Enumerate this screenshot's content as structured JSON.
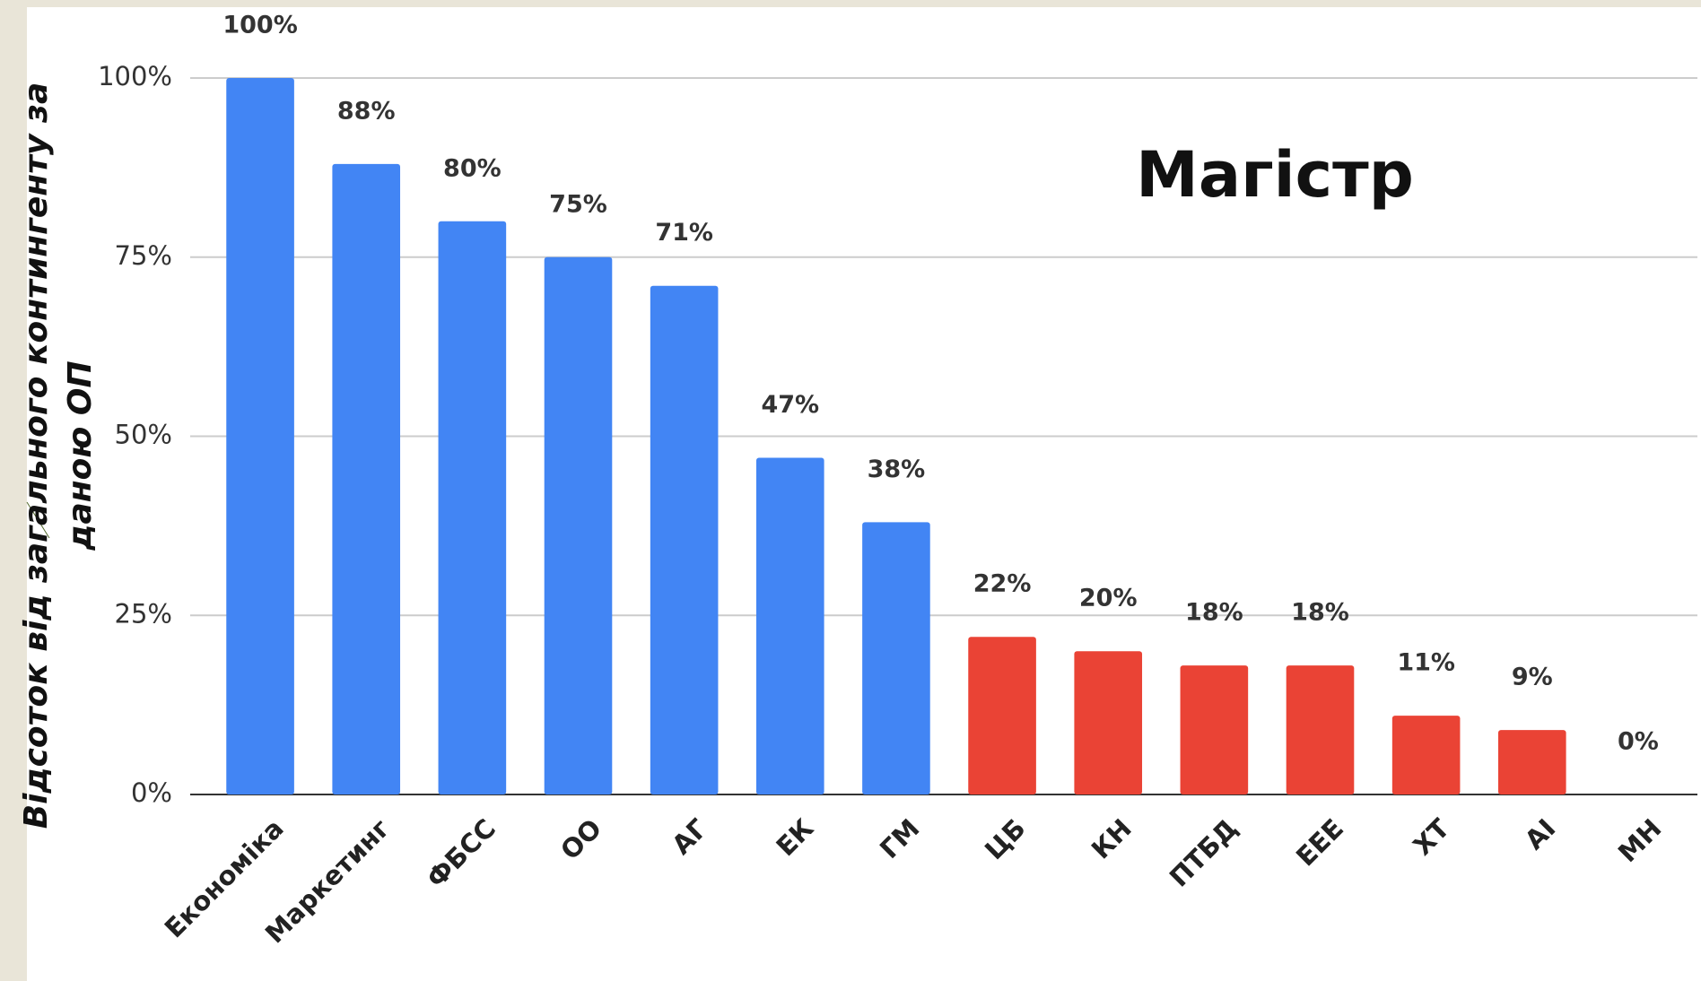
{
  "chart_data": {
    "type": "bar",
    "annotation": "Магістр",
    "ylabel": [
      "Відсоток від загального контингенту за",
      "даною ОП"
    ],
    "categories": [
      "Економіка",
      "Маркетинг",
      "ФБСС",
      "ОО",
      "АГ",
      "ЕК",
      "ГМ",
      "ЦБ",
      "КН",
      "ПТБД",
      "ЕЕЕ",
      "ХТ",
      "АІ",
      "МН"
    ],
    "values": [
      100,
      88,
      80,
      75,
      71,
      47,
      38,
      22,
      20,
      18,
      18,
      11,
      9,
      0
    ],
    "value_labels": [
      "100%",
      "88%",
      "80%",
      "75%",
      "71%",
      "47%",
      "38%",
      "22%",
      "20%",
      "18%",
      "18%",
      "11%",
      "9%",
      "0%"
    ],
    "colors": [
      "#4285f4",
      "#4285f4",
      "#4285f4",
      "#4285f4",
      "#4285f4",
      "#4285f4",
      "#4285f4",
      "#ea4335",
      "#ea4335",
      "#ea4335",
      "#ea4335",
      "#ea4335",
      "#ea4335",
      "#ea4335"
    ],
    "ylim": [
      0,
      100
    ],
    "yticks": [
      {
        "value": 0,
        "label": "0%"
      },
      {
        "value": 25,
        "label": "25%"
      },
      {
        "value": 50,
        "label": "50%"
      },
      {
        "value": 75,
        "label": "75%"
      },
      {
        "value": 100,
        "label": "100%"
      }
    ],
    "grid": true
  }
}
